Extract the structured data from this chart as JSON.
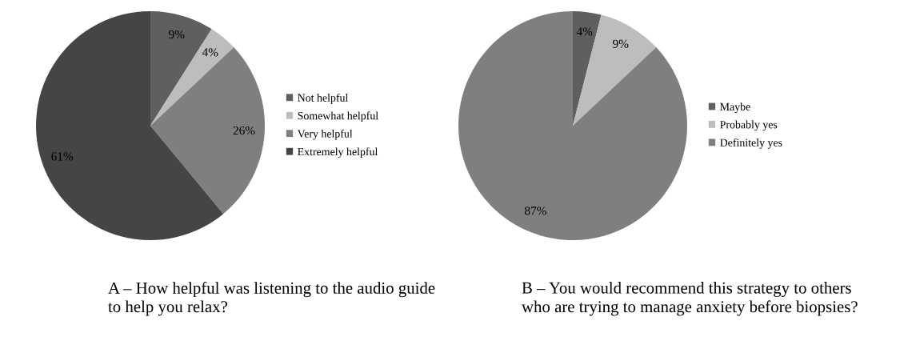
{
  "chart_data": [
    {
      "type": "pie",
      "title": "A – How helpful was listening to the audio guide to help you relax?",
      "categories": [
        "Not helpful",
        "Somewhat helpful",
        "Very helpful",
        "Extremely helpful"
      ],
      "values": [
        9,
        4,
        26,
        61
      ],
      "value_labels": [
        "9%",
        "4%",
        "26%",
        "61%"
      ],
      "colors": [
        "#5f5f5f",
        "#bdbdbd",
        "#7f7f7f",
        "#454545"
      ],
      "legend": "right"
    },
    {
      "type": "pie",
      "title": "B – You would recommend this strategy to others who are trying to manage anxiety before biopsies?",
      "categories": [
        "Maybe",
        "Probably yes",
        "Definitely yes"
      ],
      "values": [
        4,
        9,
        87
      ],
      "value_labels": [
        "4%",
        "9%",
        "87%"
      ],
      "colors": [
        "#5f5f5f",
        "#bdbdbd",
        "#7f7f7f"
      ],
      "legend": "right"
    }
  ]
}
